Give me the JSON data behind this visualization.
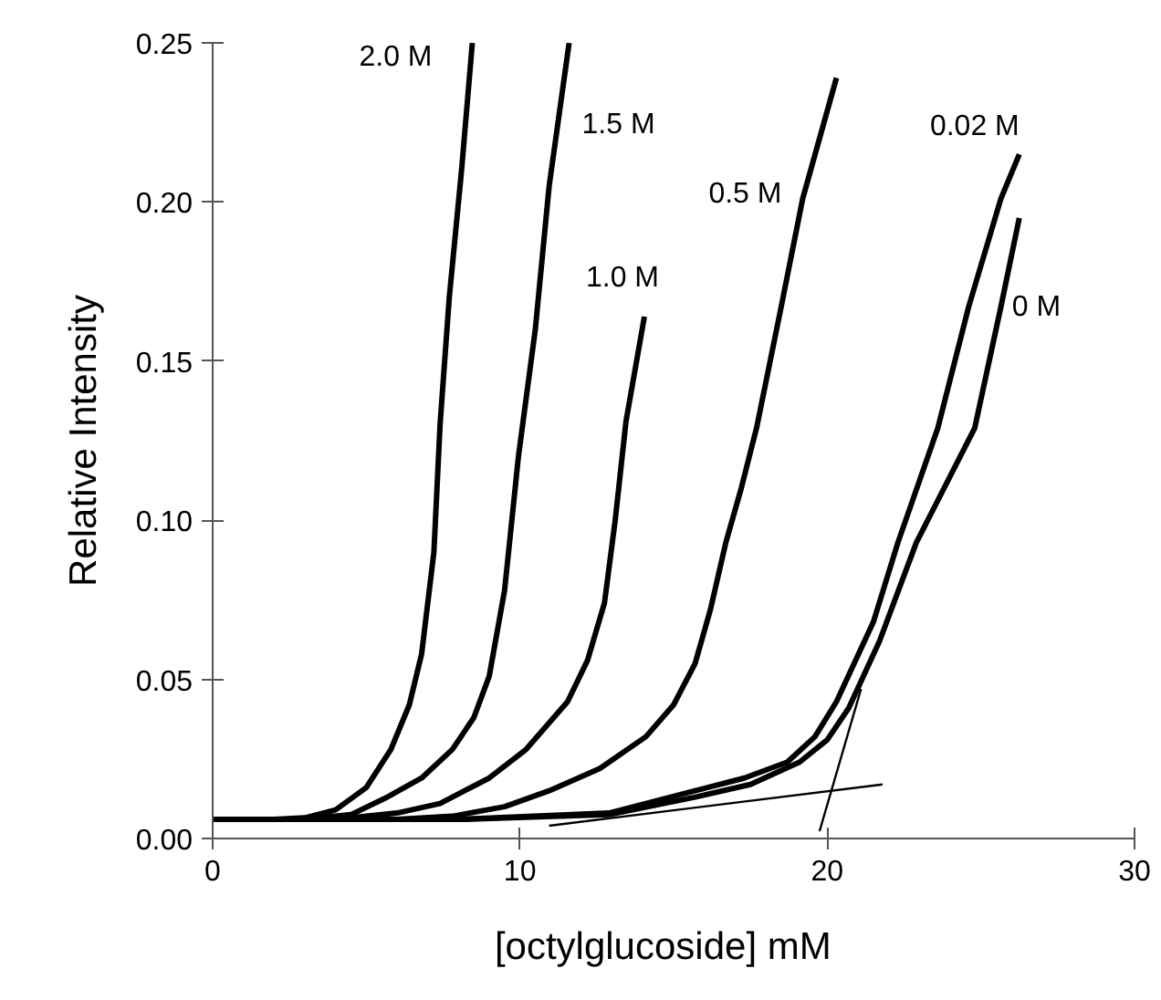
{
  "chart_data": {
    "type": "line",
    "xlabel": "[octylglucoside]   mM",
    "ylabel": "Relative Intensity",
    "xlim": [
      0,
      30
    ],
    "ylim": [
      0,
      0.25
    ],
    "xticks": [
      0,
      10,
      20,
      30
    ],
    "yticks": [
      {
        "value": 0,
        "label": "0.00"
      },
      {
        "value": 0.05,
        "label": "0.05"
      },
      {
        "value": 0.1,
        "label": "0.10"
      },
      {
        "value": 0.15,
        "label": "0.15"
      },
      {
        "value": 0.2,
        "label": "0.20"
      },
      {
        "value": 0.25,
        "label": "0.25"
      }
    ],
    "marker": "none",
    "line_style": "solid",
    "series": [
      {
        "name": "2.0 M",
        "color": "#000000",
        "x": [
          0,
          2,
          3,
          4,
          5,
          5.8,
          6.4,
          6.8,
          7.2,
          7.4,
          7.7,
          8.1,
          8.45
        ],
        "values": [
          0.006,
          0.006,
          0.0065,
          0.009,
          0.016,
          0.028,
          0.042,
          0.058,
          0.09,
          0.13,
          0.17,
          0.21,
          0.25
        ]
      },
      {
        "name": "1.5 M",
        "color": "#000000",
        "x": [
          0,
          3,
          4.5,
          5.6,
          6.8,
          7.8,
          8.5,
          9.0,
          9.5,
          9.95,
          10.5,
          10.95,
          11.6
        ],
        "values": [
          0.006,
          0.006,
          0.0075,
          0.0126,
          0.019,
          0.028,
          0.038,
          0.051,
          0.078,
          0.12,
          0.16,
          0.205,
          0.25
        ]
      },
      {
        "name": "1.0 M",
        "color": "#000000",
        "x": [
          0,
          4,
          6,
          7.4,
          9,
          10.2,
          11.55,
          12.2,
          12.75,
          13.1,
          13.45,
          14.05
        ],
        "values": [
          0.006,
          0.006,
          0.008,
          0.011,
          0.019,
          0.028,
          0.043,
          0.056,
          0.074,
          0.1,
          0.131,
          0.164
        ]
      },
      {
        "name": "0.5 M",
        "color": "#000000",
        "x": [
          0,
          6,
          7.8,
          9.5,
          10.95,
          12.6,
          14.1,
          15,
          15.7,
          16.2,
          16.7,
          17.2,
          17.7,
          18.5,
          19.2,
          20.3
        ],
        "values": [
          0.006,
          0.006,
          0.007,
          0.01,
          0.015,
          0.022,
          0.032,
          0.042,
          0.055,
          0.072,
          0.093,
          0.11,
          0.129,
          0.167,
          0.201,
          0.239
        ]
      },
      {
        "name": "0.02 M",
        "color": "#000000",
        "x": [
          0,
          8,
          12.9,
          15.7,
          17.3,
          18.7,
          19.6,
          20.3,
          21.5,
          22.3,
          23.6,
          24.6,
          25.65,
          26.25
        ],
        "values": [
          0.006,
          0.006,
          0.008,
          0.015,
          0.019,
          0.024,
          0.032,
          0.043,
          0.068,
          0.093,
          0.129,
          0.167,
          0.201,
          0.215
        ]
      },
      {
        "name": "0 M",
        "color": "#000000",
        "x": [
          0,
          8,
          12.9,
          15.7,
          17.5,
          19.1,
          20,
          20.7,
          21.7,
          22.9,
          24.8,
          25.65,
          26.25
        ],
        "values": [
          0.006,
          0.006,
          0.0075,
          0.013,
          0.017,
          0.024,
          0.031,
          0.041,
          0.062,
          0.093,
          0.129,
          0.167,
          0.195
        ]
      },
      {
        "color": "#000000",
        "x": [
          10.95,
          21.8
        ],
        "values": [
          0.004,
          0.017
        ]
      },
      {
        "color": "#000000",
        "x": [
          19.75,
          21.1
        ],
        "values": [
          0.0023,
          0.047
        ]
      }
    ]
  }
}
